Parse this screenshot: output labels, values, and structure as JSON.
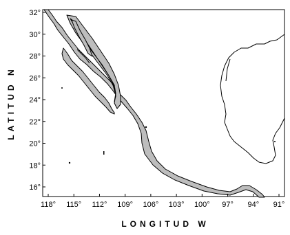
{
  "map": {
    "x_axis_title": "LONGITUD W",
    "y_axis_title": "LATITUD N",
    "x_ticks": [
      "118°",
      "115°",
      "112°",
      "109°",
      "106°",
      "103°",
      "100°",
      "97°",
      "94°",
      "91°"
    ],
    "y_ticks": [
      "32°",
      "30°",
      "28°",
      "26°",
      "24°",
      "22°",
      "20°",
      "18°",
      "16°"
    ],
    "shelf_color": "#bdbdbd",
    "coast_color": "#000000"
  }
}
